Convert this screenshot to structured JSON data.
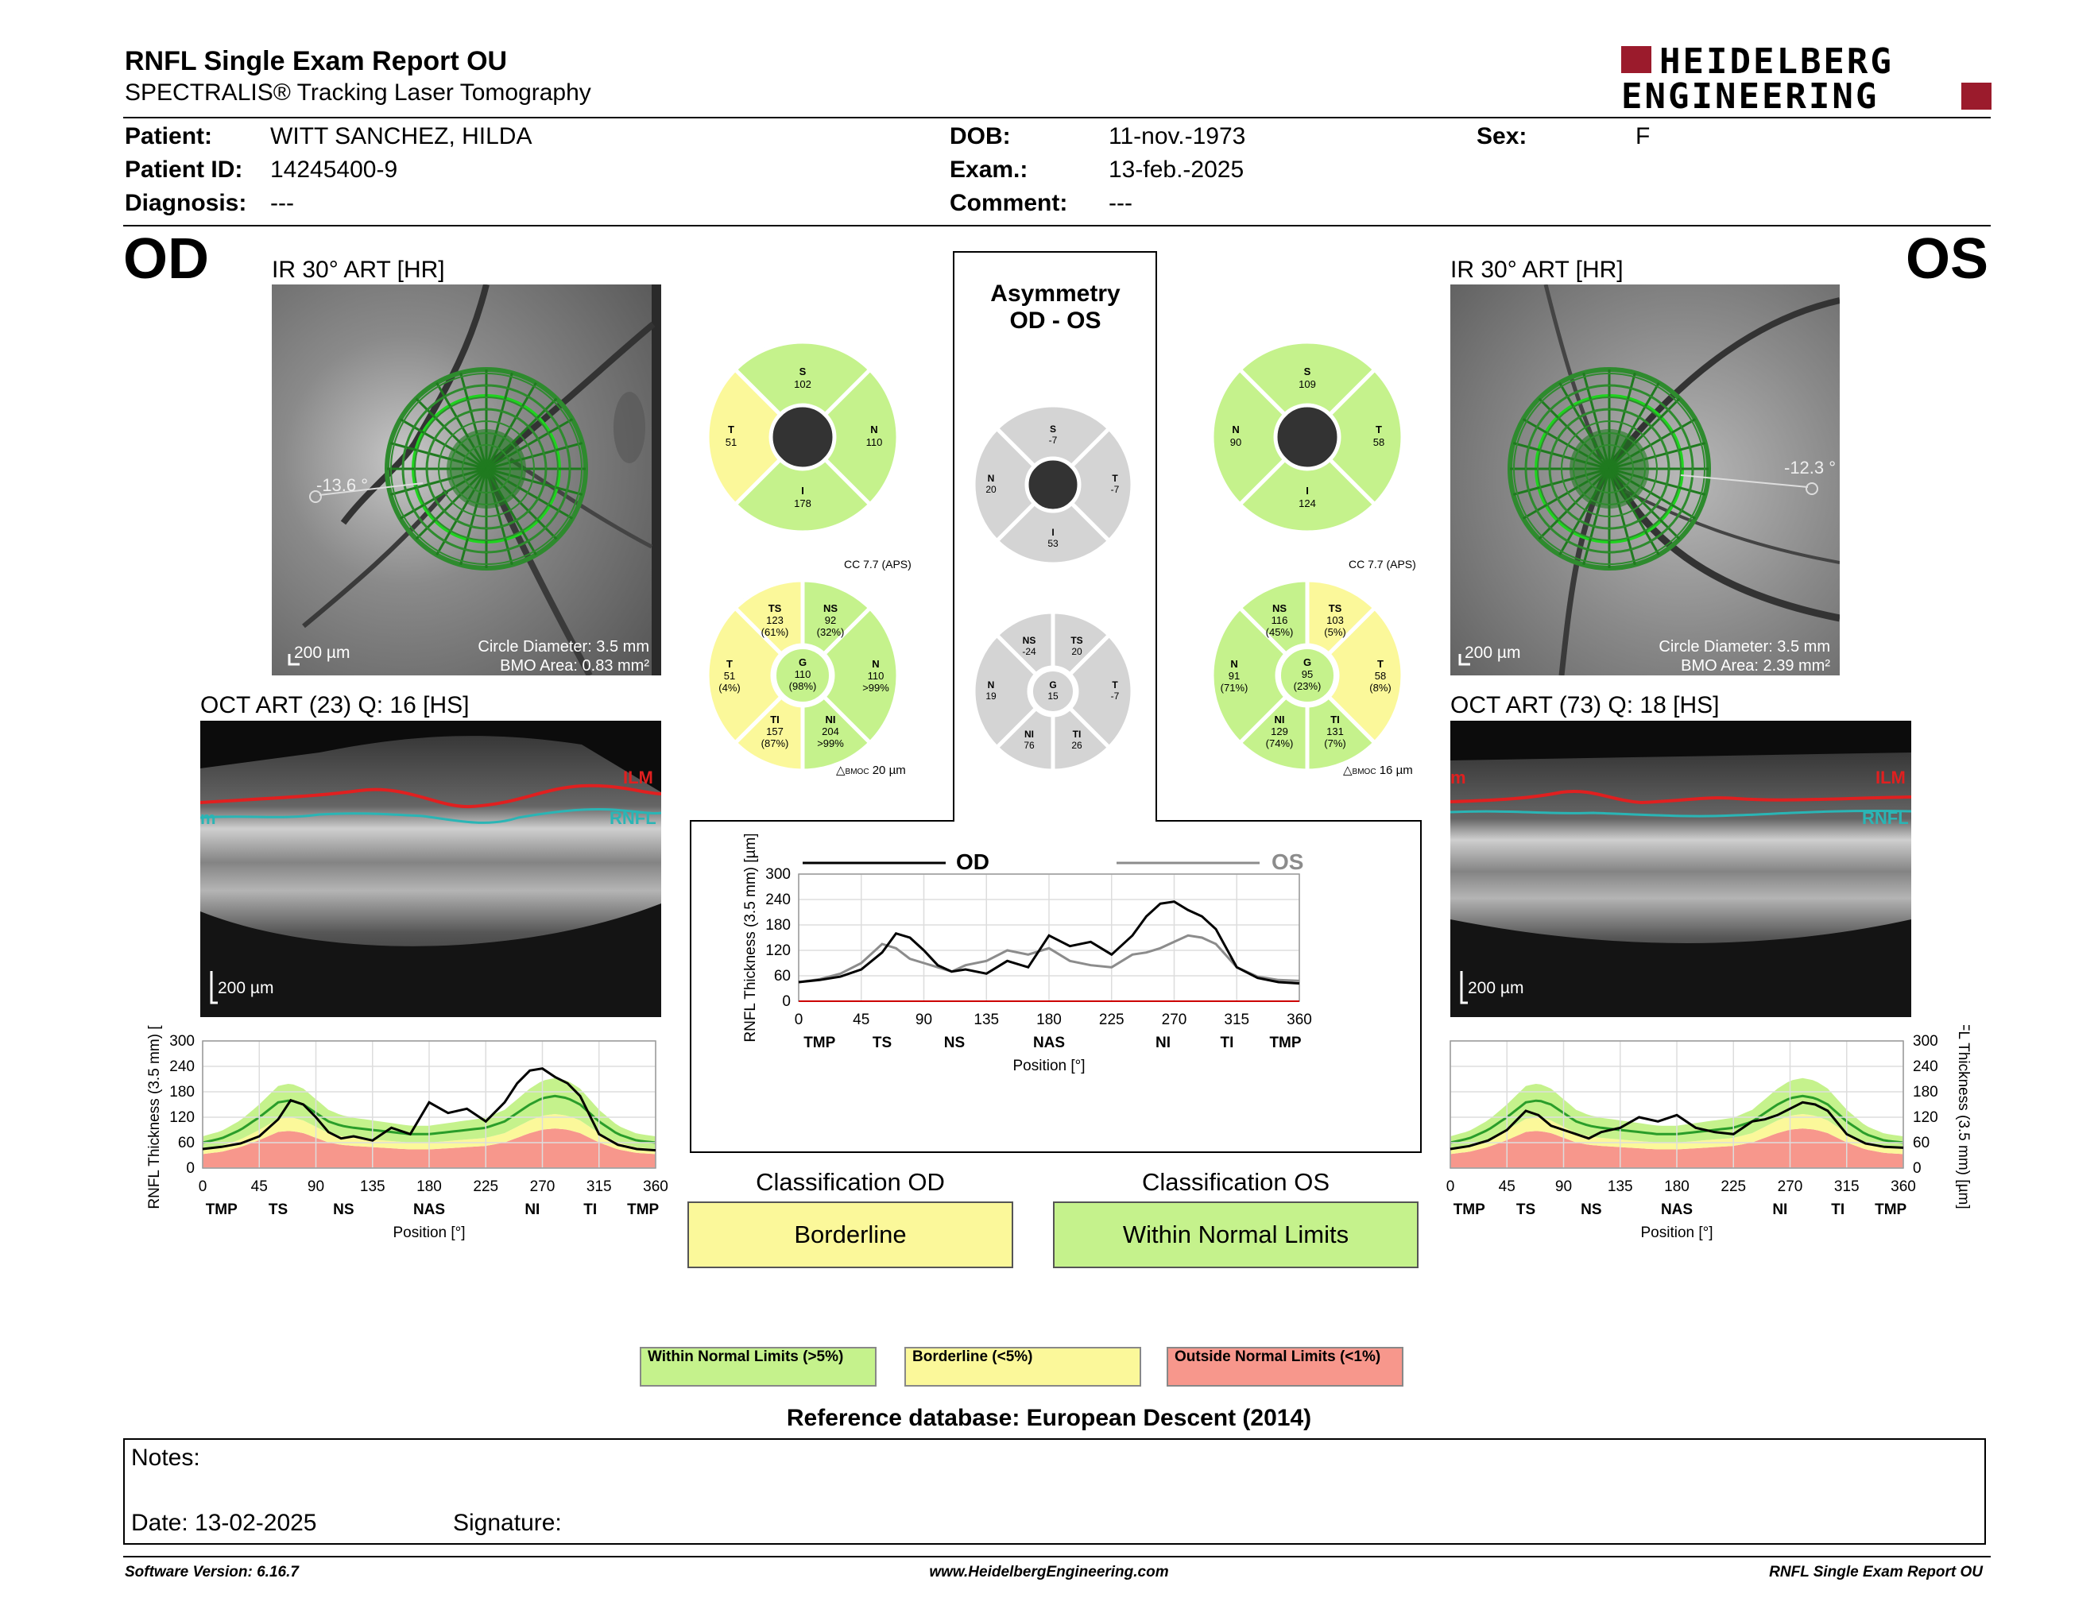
{
  "report": {
    "title": "RNFL Single Exam Report OU",
    "subtitle": "SPECTRALIS® Tracking Laser Tomography",
    "brand_line1": "HEIDELBERG",
    "brand_line2": "ENGINEERING"
  },
  "patient": {
    "patient_label": "Patient:",
    "patient_value": "WITT SANCHEZ, HILDA",
    "id_label": "Patient ID:",
    "id_value": "14245400-9",
    "diagnosis_label": "Diagnosis:",
    "diagnosis_value": "---",
    "dob_label": "DOB:",
    "dob_value": "11-nov.-1973",
    "exam_label": "Exam.:",
    "exam_value": "13-feb.-2025",
    "comment_label": "Comment:",
    "comment_value": "---",
    "sex_label": "Sex:",
    "sex_value": "F"
  },
  "od": {
    "eye": "OD",
    "ir_title": "IR 30° ART [HR]",
    "angle": "-13.6 °",
    "scale": "200 µm",
    "circle_diameter": "Circle Diameter: 3.5 mm",
    "bmo_area": "BMO Area: 0.83 mm²",
    "oct_title": "OCT ART (23) Q: 16 [HS]",
    "oct_scale": "200 µm",
    "ilm": "ILM",
    "rnfl": "RNFL",
    "rnfl_left": "m"
  },
  "os": {
    "eye": "OS",
    "ir_title": "IR 30° ART [HR]",
    "angle": "-12.3 °",
    "scale": "200 µm",
    "circle_diameter": "Circle Diameter: 3.5 mm",
    "bmo_area": "BMO Area: 2.39 mm²",
    "oct_title": "OCT ART (73) Q: 18 [HS]",
    "oct_scale": "200 µm",
    "ilm": "ILM",
    "rnfl": "RNFL",
    "rnfl_left": "m"
  },
  "asymmetry": {
    "title1": "Asymmetry",
    "title2": "OD - OS"
  },
  "sectors": {
    "od4": {
      "S": "102",
      "T": "51",
      "N": "110",
      "I": "178"
    },
    "os4": {
      "S": "109",
      "N": "90",
      "T": "58",
      "I": "124"
    },
    "asym4": {
      "S": "-7",
      "N": "20",
      "T": "-7",
      "I": "53"
    },
    "od6": {
      "TS": "123",
      "TSp": "(61%)",
      "NS": "92",
      "NSp": "(32%)",
      "T": "51",
      "Tp": "(4%)",
      "G": "110",
      "Gp": "(98%)",
      "N": "110",
      "Np": ">99%",
      "TI": "157",
      "TIp": "(87%)",
      "NI": "204",
      "NIp": ">99%"
    },
    "os6": {
      "NS": "116",
      "NSp": "(45%)",
      "TS": "103",
      "TSp": "(5%)",
      "N": "91",
      "Np": "(71%)",
      "G": "95",
      "Gp": "(23%)",
      "T": "58",
      "Tp": "(8%)",
      "NI": "129",
      "NIp": "(74%)",
      "TI": "131",
      "TIp": "(7%)"
    },
    "asym6": {
      "NS": "-24",
      "TS": "20",
      "N": "19",
      "G": "15",
      "T": "-7",
      "NI": "76",
      "TI": "26"
    },
    "od_cc": "CC 7.7 (APS)",
    "os_cc": "CC 7.7 (APS)",
    "od_bmoc": "20 µm",
    "os_bmoc": "16 µm",
    "bmoc_sub": "BMOC"
  },
  "labels": {
    "S": "S",
    "I": "I",
    "N": "N",
    "T": "T",
    "G": "G",
    "TS": "TS",
    "NS": "NS",
    "TI": "TI",
    "NI": "NI"
  },
  "chart_labels": {
    "x_regions": [
      "TMP",
      "TS",
      "NS",
      "NAS",
      "NI",
      "TI",
      "TMP"
    ],
    "xlabel": "Position [°]",
    "ylabel": "RNFL Thickness (3.5 mm) [µm]",
    "od_legend": "OD",
    "os_legend": "OS"
  },
  "classification": {
    "od_title": "Classification OD",
    "od_value": "Borderline",
    "os_title": "Classification OS",
    "os_value": "Within Normal Limits"
  },
  "legend": {
    "wnl": "Within Normal Limits (>5%)",
    "bl": "Borderline (<5%)",
    "onl": "Outside Normal Limits (<1%)",
    "colors": {
      "wnl": "#c5f28c",
      "bl": "#fbf89a",
      "onl": "#f7978c",
      "od_line": "#000000",
      "os_line": "#8c8c8c",
      "ilm": "#e02020",
      "rnfl": "#2ab5b5"
    }
  },
  "reference": "Reference database: European Descent (2014)",
  "notes": {
    "notes_label": "Notes:",
    "date_label": "Date: 13-02-2025",
    "signature_label": "Signature:"
  },
  "footer": {
    "version": "Software Version: 6.16.7",
    "url": "www.HeidelbergEngineering.com",
    "report": "RNFL Single Exam Report OU"
  },
  "chart_data": [
    {
      "type": "line",
      "title": "",
      "xlabel": "Position [°]",
      "ylabel": "RNFL Thickness (3.5 mm) [µm]",
      "xlim": [
        0,
        360
      ],
      "ylim": [
        0,
        300
      ],
      "x_ticks": [
        0,
        45,
        90,
        135,
        180,
        225,
        270,
        315,
        360
      ],
      "y_ticks": [
        0,
        60,
        120,
        180,
        240,
        300
      ],
      "x": [
        0,
        15,
        30,
        45,
        60,
        70,
        80,
        90,
        100,
        110,
        120,
        135,
        150,
        165,
        180,
        195,
        210,
        225,
        240,
        250,
        260,
        270,
        280,
        290,
        300,
        315,
        330,
        345,
        360
      ],
      "series": [
        {
          "name": "OD",
          "values": [
            45,
            50,
            58,
            75,
            115,
            160,
            150,
            120,
            85,
            70,
            75,
            65,
            95,
            80,
            155,
            130,
            140,
            110,
            155,
            200,
            230,
            235,
            215,
            200,
            170,
            80,
            55,
            45,
            42
          ]
        },
        {
          "name": "OS",
          "values": [
            45,
            52,
            65,
            90,
            135,
            125,
            100,
            90,
            80,
            70,
            85,
            95,
            120,
            110,
            125,
            95,
            85,
            80,
            110,
            115,
            125,
            140,
            155,
            150,
            135,
            80,
            58,
            50,
            48
          ]
        }
      ]
    }
  ]
}
